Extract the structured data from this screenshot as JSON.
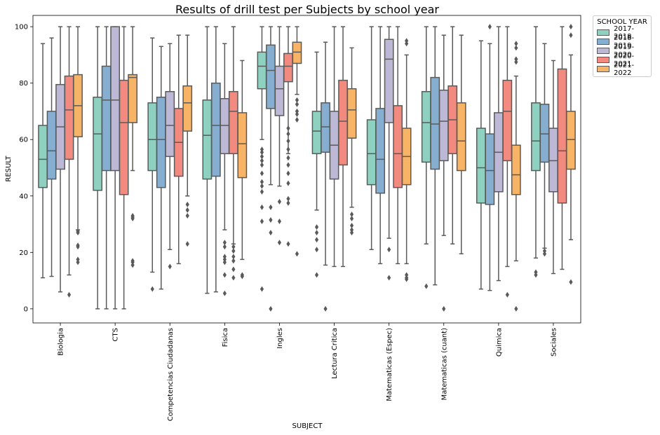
{
  "chart_data": {
    "type": "box",
    "title": "Results of drill test per Subjects by school year",
    "xlabel": "SUBJECT",
    "ylabel": "RESULT",
    "ylim": [
      -5,
      104
    ],
    "yticks": [
      0,
      20,
      40,
      60,
      80,
      100
    ],
    "legend": {
      "title": "SCHOOL YEAR",
      "placement": "outside-top-right"
    },
    "series": [
      {
        "name": "2017-2018",
        "color": "#8fd1c0"
      },
      {
        "name": "2018-2019",
        "color": "#86aed1"
      },
      {
        "name": "2019-2020",
        "color": "#bdb8d6"
      },
      {
        "name": "2020-2021",
        "color": "#f28a80"
      },
      {
        "name": "2021-2022",
        "color": "#f7b366"
      }
    ],
    "categories": [
      "Biologia",
      "CTS",
      "Competencias Ciudadanas",
      "Fisica",
      "Ingles",
      "Lectura Critica",
      "Matematicas (Espec)",
      "Matematicas (cuant)",
      "Quimica",
      "Sociales"
    ],
    "boxes": [
      [
        {
          "whislo": 11,
          "q1": 43,
          "med": 53,
          "q3": 65,
          "whishi": 94,
          "fliers": []
        },
        {
          "whislo": 11.5,
          "q1": 46,
          "med": 56,
          "q3": 70,
          "whishi": 96,
          "fliers": []
        },
        {
          "whislo": 6,
          "q1": 49.5,
          "med": 64.5,
          "q3": 79.5,
          "whishi": 100,
          "fliers": []
        },
        {
          "whislo": 12,
          "q1": 53,
          "med": 70.5,
          "q3": 82.5,
          "whishi": 100,
          "fliers": [
            5
          ]
        },
        {
          "whislo": 28,
          "q1": 61,
          "med": 72,
          "q3": 83,
          "whishi": 100,
          "fliers": [
            27.5,
            27,
            22.5,
            22,
            17.5,
            16.5
          ]
        }
      ],
      [
        {
          "whislo": 0,
          "q1": 42,
          "med": 62,
          "q3": 75,
          "whishi": 100,
          "fliers": []
        },
        {
          "whislo": 0,
          "q1": 49,
          "med": 74,
          "q3": 86,
          "whishi": 100,
          "fliers": []
        },
        {
          "whislo": 0,
          "q1": 49,
          "med": 74,
          "q3": 100,
          "whishi": 100,
          "fliers": []
        },
        {
          "whislo": 0,
          "q1": 40.5,
          "med": 66,
          "q3": 81,
          "whishi": 100,
          "fliers": []
        },
        {
          "whislo": 49,
          "q1": 66,
          "med": 82,
          "q3": 83,
          "whishi": 100,
          "fliers": [
            33,
            32.5,
            32,
            17,
            16.5,
            15.5
          ]
        }
      ],
      [
        {
          "whislo": 13,
          "q1": 49,
          "med": 60,
          "q3": 73,
          "whishi": 96,
          "fliers": [
            7
          ]
        },
        {
          "whislo": 7,
          "q1": 43,
          "med": 60,
          "q3": 75,
          "whishi": 93,
          "fliers": []
        },
        {
          "whislo": 21,
          "q1": 54,
          "med": 65,
          "q3": 77,
          "whishi": 94,
          "fliers": [
            15
          ]
        },
        {
          "whislo": 16,
          "q1": 47,
          "med": 59,
          "q3": 71,
          "whishi": 97,
          "fliers": []
        },
        {
          "whislo": 40,
          "q1": 63,
          "med": 73,
          "q3": 79,
          "whishi": 97,
          "fliers": [
            37,
            35,
            33,
            23
          ]
        }
      ],
      [
        {
          "whislo": 5.5,
          "q1": 46,
          "med": 61.5,
          "q3": 74,
          "whishi": 100,
          "fliers": []
        },
        {
          "whislo": 6,
          "q1": 47,
          "med": 65,
          "q3": 80,
          "whishi": 100,
          "fliers": []
        },
        {
          "whislo": 28,
          "q1": 55,
          "med": 65,
          "q3": 74.5,
          "whishi": 94,
          "fliers": [
            23.5,
            22,
            18.5,
            17.5,
            16.5,
            12,
            5.5
          ]
        },
        {
          "whislo": 23,
          "q1": 55,
          "med": 70,
          "q3": 77,
          "whishi": 100,
          "fliers": [
            22,
            20.5,
            18.5,
            17,
            14,
            11
          ]
        },
        {
          "whislo": 17.5,
          "q1": 46.5,
          "med": 58.5,
          "q3": 69.5,
          "whishi": 88,
          "fliers": [
            12,
            11.5
          ]
        }
      ],
      [
        {
          "whislo": 60,
          "q1": 78,
          "med": 86,
          "q3": 91,
          "whishi": 100,
          "fliers": [
            56.5,
            55.5,
            54,
            52.5,
            51,
            48,
            45,
            43.5,
            41.5,
            36,
            31,
            7
          ]
        },
        {
          "whislo": 44,
          "q1": 71,
          "med": 84.5,
          "q3": 93.5,
          "whishi": 100,
          "fliers": [
            36,
            31.5,
            27,
            0
          ]
        },
        {
          "whislo": 43.5,
          "q1": 68.5,
          "med": 78,
          "q3": 86,
          "whishi": 100,
          "fliers": [
            38,
            31,
            23.5
          ]
        },
        {
          "whislo": 55,
          "q1": 80.5,
          "med": 86,
          "q3": 90.5,
          "whishi": 100,
          "fliers": [
            64,
            62,
            59.5,
            56.5,
            53.5,
            51,
            48,
            44.5,
            39,
            37.5,
            23
          ]
        },
        {
          "whislo": 76,
          "q1": 87,
          "med": 91,
          "q3": 94.5,
          "whishi": 100,
          "fliers": [
            74,
            72.5,
            70,
            69,
            67,
            19.5
          ]
        }
      ],
      [
        {
          "whislo": 35,
          "q1": 55,
          "med": 63,
          "q3": 70,
          "whishi": 91,
          "fliers": [
            29,
            27,
            24.5,
            21,
            12
          ]
        },
        {
          "whislo": 15.5,
          "q1": 55.5,
          "med": 64.5,
          "q3": 73,
          "whishi": 94.5,
          "fliers": [
            0
          ]
        },
        {
          "whislo": 15,
          "q1": 46,
          "med": 58,
          "q3": 70,
          "whishi": 100,
          "fliers": []
        },
        {
          "whislo": 15,
          "q1": 51,
          "med": 66.5,
          "q3": 81,
          "whishi": 100,
          "fliers": []
        },
        {
          "whislo": 36,
          "q1": 60.5,
          "med": 70.5,
          "q3": 78,
          "whishi": 92.5,
          "fliers": [
            33.5,
            32,
            29.5,
            28,
            27
          ]
        }
      ],
      [
        {
          "whislo": 21,
          "q1": 44,
          "med": 55,
          "q3": 67,
          "whishi": 100,
          "fliers": []
        },
        {
          "whislo": 16,
          "q1": 41,
          "med": 53,
          "q3": 71,
          "whishi": 100,
          "fliers": []
        },
        {
          "whislo": 25,
          "q1": 66,
          "med": 88.5,
          "q3": 95.5,
          "whishi": 100,
          "fliers": [
            21,
            11
          ]
        },
        {
          "whislo": 16,
          "q1": 43,
          "med": 55,
          "q3": 72,
          "whishi": 100,
          "fliers": []
        },
        {
          "whislo": 16,
          "q1": 44,
          "med": 54,
          "q3": 64,
          "whishi": 90,
          "fliers": [
            95,
            94,
            12,
            11,
            10.5
          ]
        }
      ],
      [
        {
          "whislo": 23,
          "q1": 52,
          "med": 66,
          "q3": 77,
          "whishi": 100,
          "fliers": [
            8
          ]
        },
        {
          "whislo": 8.5,
          "q1": 49.5,
          "med": 65.5,
          "q3": 82,
          "whishi": 100,
          "fliers": []
        },
        {
          "whislo": 26,
          "q1": 52.5,
          "med": 66.5,
          "q3": 77.5,
          "whishi": 97,
          "fliers": [
            0
          ]
        },
        {
          "whislo": 23,
          "q1": 55,
          "med": 67,
          "q3": 79,
          "whishi": 100,
          "fliers": []
        },
        {
          "whislo": 19.5,
          "q1": 49,
          "med": 59.5,
          "q3": 73,
          "whishi": 97,
          "fliers": []
        }
      ],
      [
        {
          "whislo": 7,
          "q1": 37.5,
          "med": 50,
          "q3": 64,
          "whishi": 95,
          "fliers": []
        },
        {
          "whislo": 6.5,
          "q1": 37,
          "med": 49,
          "q3": 62,
          "whishi": 94,
          "fliers": [
            100
          ]
        },
        {
          "whislo": 10,
          "q1": 41.5,
          "med": 55.5,
          "q3": 69.5,
          "whishi": 100,
          "fliers": []
        },
        {
          "whislo": 15,
          "q1": 52.5,
          "med": 70,
          "q3": 81,
          "whishi": 100,
          "fliers": [
            5
          ]
        },
        {
          "whislo": 17,
          "q1": 40.5,
          "med": 47.5,
          "q3": 58,
          "whishi": 82.5,
          "fliers": [
            94,
            92.5,
            88.5,
            87.5,
            0
          ]
        }
      ],
      [
        {
          "whislo": 18,
          "q1": 49,
          "med": 59.5,
          "q3": 73,
          "whishi": 100,
          "fliers": [
            13,
            12
          ]
        },
        {
          "whislo": 21.5,
          "q1": 52,
          "med": 62,
          "q3": 72.5,
          "whishi": 94,
          "fliers": [
            20.5,
            19.5
          ]
        },
        {
          "whislo": 12.5,
          "q1": 41.5,
          "med": 52.5,
          "q3": 64,
          "whishi": 88,
          "fliers": []
        },
        {
          "whislo": 14,
          "q1": 37.5,
          "med": 56,
          "q3": 85,
          "whishi": 100,
          "fliers": []
        },
        {
          "whislo": 24.5,
          "q1": 49.5,
          "med": 60,
          "q3": 70,
          "whishi": 90,
          "fliers": [
            100,
            97,
            9.5
          ]
        }
      ]
    ]
  }
}
